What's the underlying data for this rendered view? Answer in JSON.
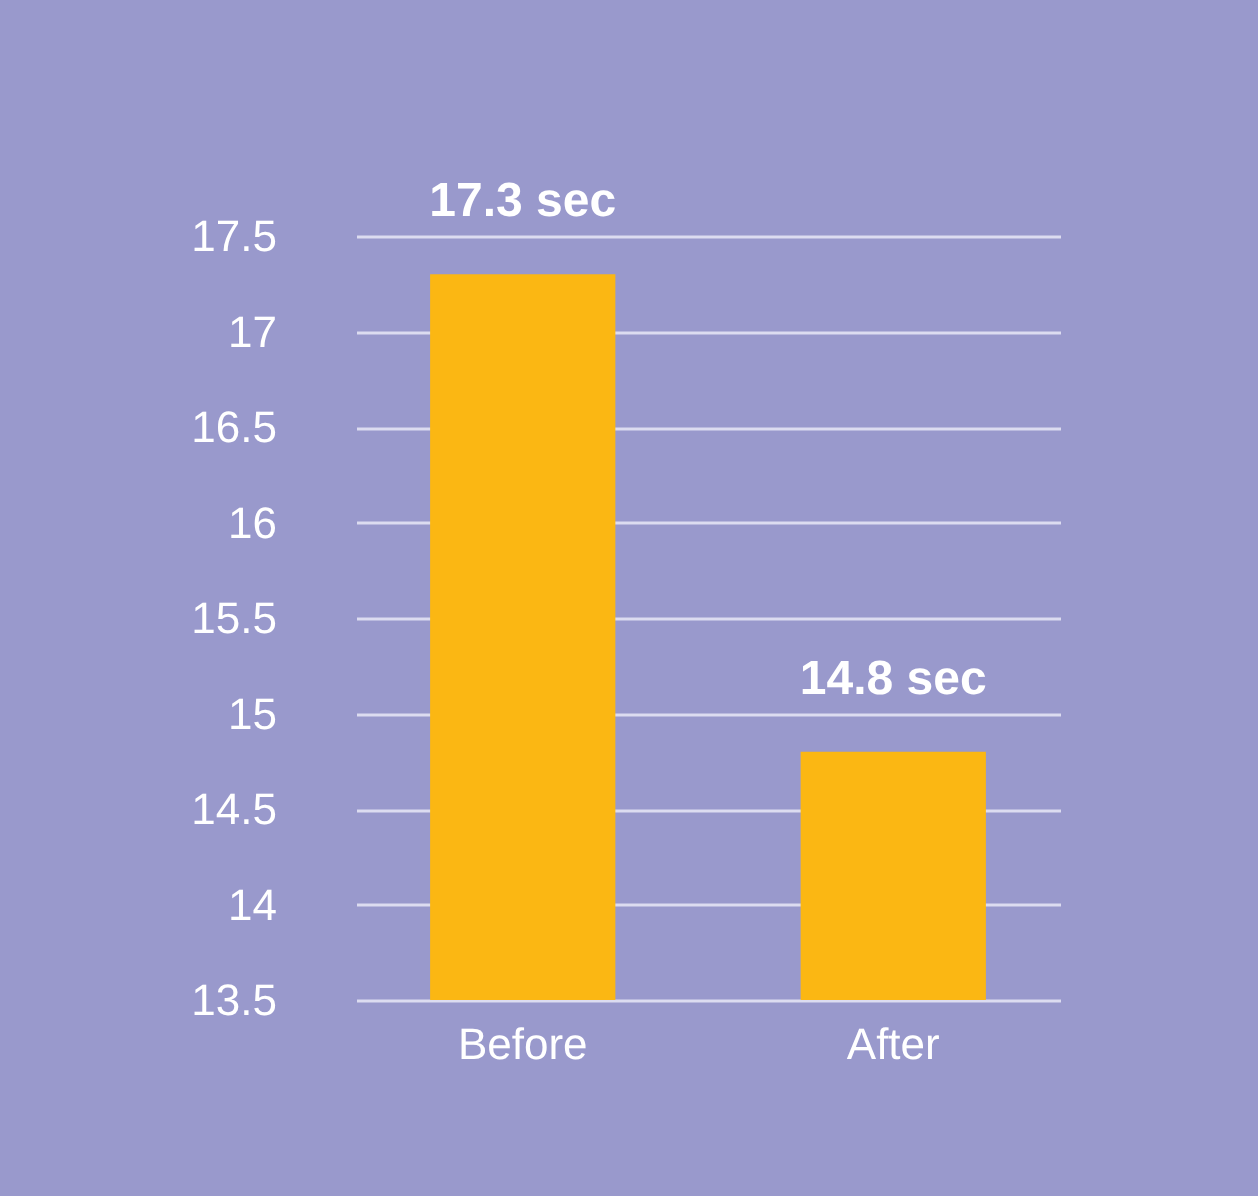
{
  "chart_data": {
    "type": "bar",
    "categories": [
      "Before",
      "After"
    ],
    "values": [
      17.3,
      14.8
    ],
    "value_labels": [
      "17.3 sec",
      "14.8 sec"
    ],
    "color": "#fbb713",
    "ylim": [
      13.5,
      17.5
    ],
    "yticks": [
      13.5,
      14,
      14.5,
      15,
      15.5,
      16,
      16.5,
      17,
      17.5
    ],
    "grid": "y"
  }
}
